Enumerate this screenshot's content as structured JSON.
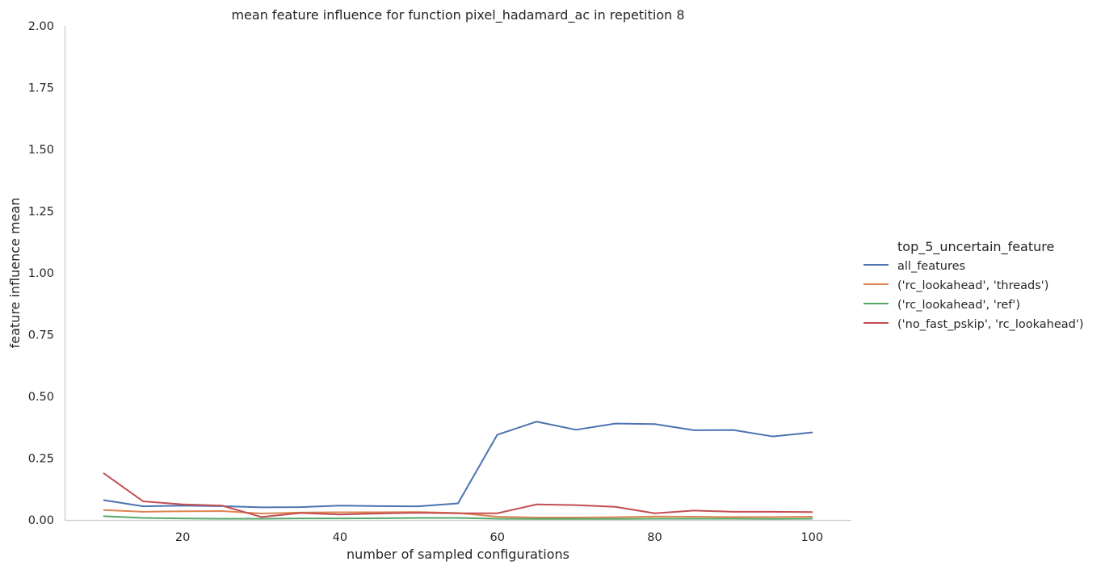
{
  "chart_data": {
    "type": "line",
    "title": "mean feature influence for function pixel_hadamard_ac in repetition 8",
    "xlabel": "number of sampled configurations",
    "ylabel": "feature influence mean",
    "xlim": [
      5,
      105
    ],
    "ylim": [
      0,
      2
    ],
    "x_ticks": [
      20,
      40,
      60,
      80,
      100
    ],
    "y_ticks": [
      0,
      0.25,
      0.5,
      0.75,
      1.0,
      1.25,
      1.5,
      1.75,
      2.0
    ],
    "y_tick_labels": [
      "0.00",
      "0.25",
      "0.50",
      "0.75",
      "1.00",
      "1.25",
      "1.50",
      "1.75",
      "2.00"
    ],
    "x": [
      10,
      15,
      20,
      25,
      30,
      35,
      40,
      45,
      50,
      55,
      60,
      65,
      70,
      75,
      80,
      85,
      90,
      95,
      100
    ],
    "grid": false,
    "legend_title": "top_5_uncertain_feature",
    "legend_position": "right",
    "series": [
      {
        "name": "all_features",
        "color": "#4c72b0",
        "values": [
          0.08,
          0.055,
          0.058,
          0.056,
          0.051,
          0.052,
          0.058,
          0.056,
          0.055,
          0.067,
          0.345,
          0.398,
          0.365,
          0.39,
          0.388,
          0.363,
          0.364,
          0.338,
          0.354
        ]
      },
      {
        "name": "('rc_lookahead', 'threads')",
        "color": "#dd8452",
        "values": [
          0.04,
          0.033,
          0.035,
          0.036,
          0.026,
          0.03,
          0.031,
          0.031,
          0.032,
          0.028,
          0.013,
          0.01,
          0.01,
          0.011,
          0.014,
          0.013,
          0.012,
          0.012,
          0.013
        ]
      },
      {
        "name": "('rc_lookahead', 'ref')",
        "color": "#55a868",
        "values": [
          0.015,
          0.008,
          0.006,
          0.005,
          0.005,
          0.006,
          0.006,
          0.007,
          0.008,
          0.008,
          0.005,
          0.004,
          0.004,
          0.004,
          0.005,
          0.005,
          0.005,
          0.004,
          0.005
        ]
      },
      {
        "name": "('no_fast_pskip', 'rc_lookahead')",
        "color": "#c44e52",
        "values": [
          0.188,
          0.075,
          0.063,
          0.058,
          0.012,
          0.028,
          0.022,
          0.026,
          0.029,
          0.027,
          0.027,
          0.063,
          0.06,
          0.053,
          0.027,
          0.038,
          0.033,
          0.033,
          0.032
        ]
      }
    ]
  }
}
